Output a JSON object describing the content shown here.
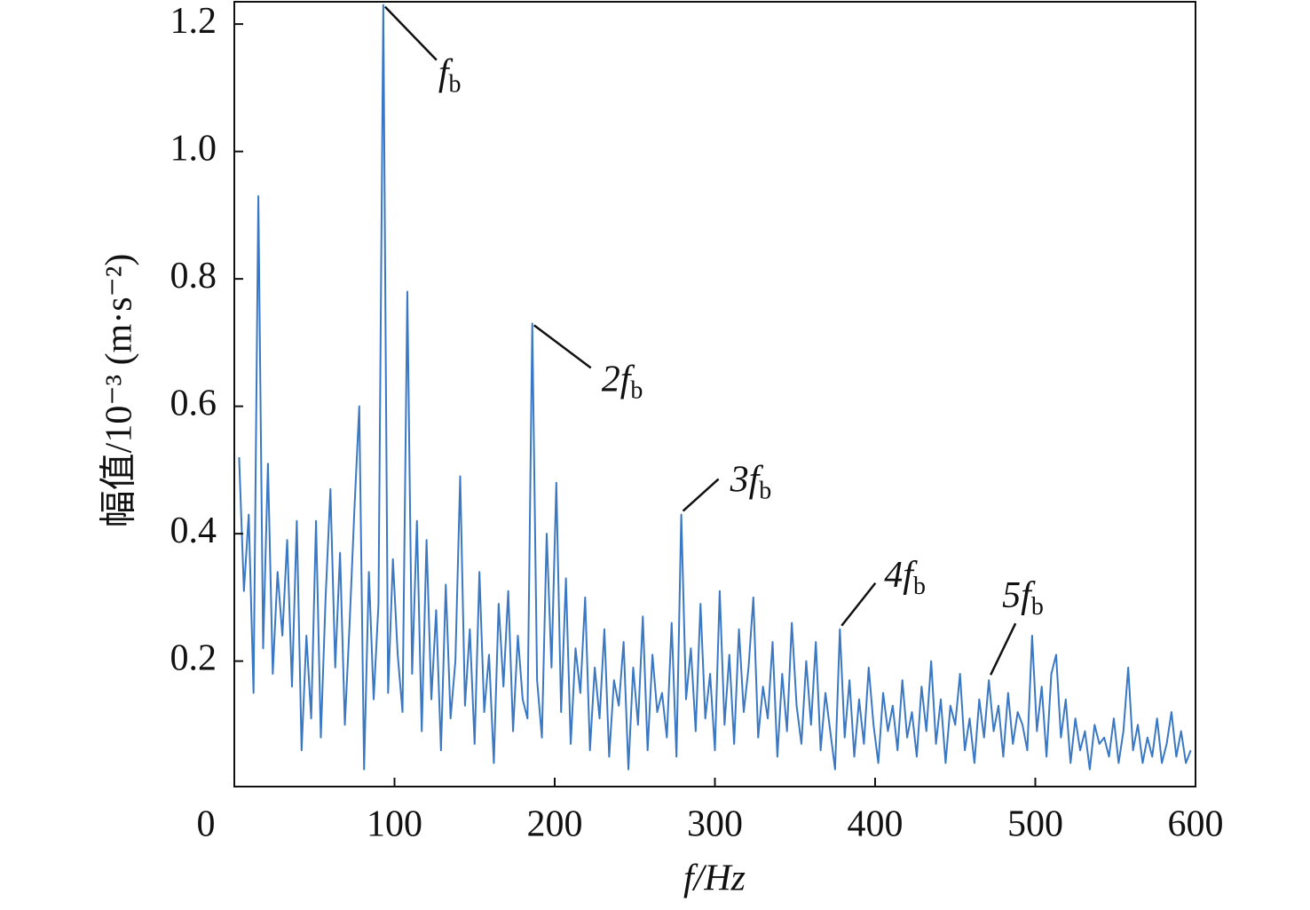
{
  "chart_data": {
    "type": "line",
    "x_label": "f/Hz",
    "y_label": "幅值/10⁻³ (m·s⁻²)",
    "color": "#3a78c3",
    "xlim": [
      0,
      600
    ],
    "xticks": [
      0,
      100,
      200,
      300,
      400,
      500,
      600
    ],
    "ylim": [
      0.003,
      1.235
    ],
    "yticks": [
      0.2,
      0.4,
      0.6,
      0.8,
      {
        "value": 1,
        "label": "1.0"
      },
      1.2
    ],
    "x": [
      3,
      6,
      9,
      12,
      15,
      18,
      21,
      24,
      27,
      30,
      33,
      36,
      39,
      42,
      45,
      48,
      51,
      54,
      57,
      60,
      63,
      66,
      69,
      72,
      75,
      78,
      81,
      84,
      87,
      90,
      93,
      96,
      99,
      102,
      105,
      108,
      111,
      114,
      117,
      120,
      123,
      126,
      129,
      132,
      135,
      138,
      141,
      144,
      147,
      150,
      153,
      156,
      159,
      162,
      165,
      168,
      171,
      174,
      177,
      180,
      183,
      186,
      189,
      192,
      195,
      198,
      201,
      204,
      207,
      210,
      213,
      216,
      219,
      222,
      225,
      228,
      231,
      234,
      237,
      240,
      243,
      246,
      249,
      252,
      255,
      258,
      261,
      264,
      267,
      270,
      273,
      276,
      279,
      282,
      285,
      288,
      291,
      294,
      297,
      300,
      303,
      306,
      309,
      312,
      315,
      318,
      321,
      324,
      327,
      330,
      333,
      336,
      339,
      342,
      345,
      348,
      351,
      354,
      357,
      360,
      363,
      366,
      369,
      372,
      375,
      378,
      381,
      384,
      387,
      390,
      393,
      396,
      399,
      402,
      405,
      408,
      411,
      414,
      417,
      420,
      423,
      426,
      429,
      432,
      435,
      438,
      441,
      444,
      447,
      450,
      453,
      456,
      459,
      462,
      465,
      468,
      471,
      474,
      477,
      480,
      483,
      486,
      489,
      492,
      495,
      498,
      501,
      504,
      507,
      510,
      513,
      516,
      519,
      522,
      525,
      528,
      531,
      534,
      537,
      540,
      543,
      546,
      549,
      552,
      555,
      558,
      561,
      564,
      567,
      570,
      573,
      576,
      579,
      582,
      585,
      588,
      591,
      594,
      597
    ],
    "values": [
      0.52,
      0.31,
      0.43,
      0.15,
      0.93,
      0.22,
      0.51,
      0.18,
      0.34,
      0.24,
      0.39,
      0.16,
      0.42,
      0.06,
      0.24,
      0.11,
      0.42,
      0.08,
      0.3,
      0.47,
      0.19,
      0.37,
      0.1,
      0.26,
      0.44,
      0.6,
      0.03,
      0.34,
      0.14,
      0.29,
      1.23,
      0.15,
      0.36,
      0.21,
      0.12,
      0.78,
      0.18,
      0.42,
      0.09,
      0.39,
      0.14,
      0.28,
      0.06,
      0.32,
      0.11,
      0.2,
      0.49,
      0.13,
      0.25,
      0.07,
      0.34,
      0.12,
      0.21,
      0.04,
      0.29,
      0.16,
      0.31,
      0.09,
      0.24,
      0.14,
      0.11,
      0.73,
      0.17,
      0.08,
      0.4,
      0.19,
      0.48,
      0.12,
      0.33,
      0.07,
      0.22,
      0.15,
      0.3,
      0.06,
      0.19,
      0.11,
      0.25,
      0.05,
      0.17,
      0.13,
      0.23,
      0.03,
      0.19,
      0.1,
      0.27,
      0.06,
      0.21,
      0.12,
      0.15,
      0.08,
      0.26,
      0.05,
      0.43,
      0.14,
      0.22,
      0.09,
      0.29,
      0.11,
      0.18,
      0.06,
      0.31,
      0.1,
      0.21,
      0.07,
      0.25,
      0.12,
      0.19,
      0.3,
      0.08,
      0.16,
      0.11,
      0.23,
      0.05,
      0.18,
      0.09,
      0.26,
      0.13,
      0.07,
      0.2,
      0.1,
      0.23,
      0.06,
      0.15,
      0.09,
      0.03,
      0.25,
      0.08,
      0.17,
      0.05,
      0.14,
      0.07,
      0.19,
      0.1,
      0.04,
      0.15,
      0.09,
      0.13,
      0.06,
      0.17,
      0.08,
      0.12,
      0.05,
      0.16,
      0.09,
      0.2,
      0.07,
      0.14,
      0.04,
      0.13,
      0.1,
      0.18,
      0.06,
      0.11,
      0.04,
      0.14,
      0.08,
      0.17,
      0.09,
      0.13,
      0.05,
      0.15,
      0.07,
      0.12,
      0.1,
      0.06,
      0.24,
      0.09,
      0.16,
      0.05,
      0.18,
      0.21,
      0.08,
      0.14,
      0.04,
      0.11,
      0.06,
      0.09,
      0.03,
      0.1,
      0.07,
      0.08,
      0.05,
      0.11,
      0.04,
      0.09,
      0.19,
      0.06,
      0.1,
      0.04,
      0.08,
      0.05,
      0.11,
      0.04,
      0.07,
      0.12,
      0.05,
      0.09,
      0.04,
      0.06
    ],
    "annotations": [
      {
        "label": "f",
        "subscript": "b",
        "x": 93,
        "y": 1.23
      },
      {
        "label": "2f",
        "subscript": "b",
        "x": 186,
        "y": 0.73
      },
      {
        "label": "3f",
        "subscript": "b",
        "x": 279,
        "y": 0.43
      },
      {
        "label": "4f",
        "subscript": "b",
        "x": 378,
        "y": 0.25
      },
      {
        "label": "5f",
        "subscript": "b",
        "x": 471,
        "y": 0.17
      }
    ]
  }
}
